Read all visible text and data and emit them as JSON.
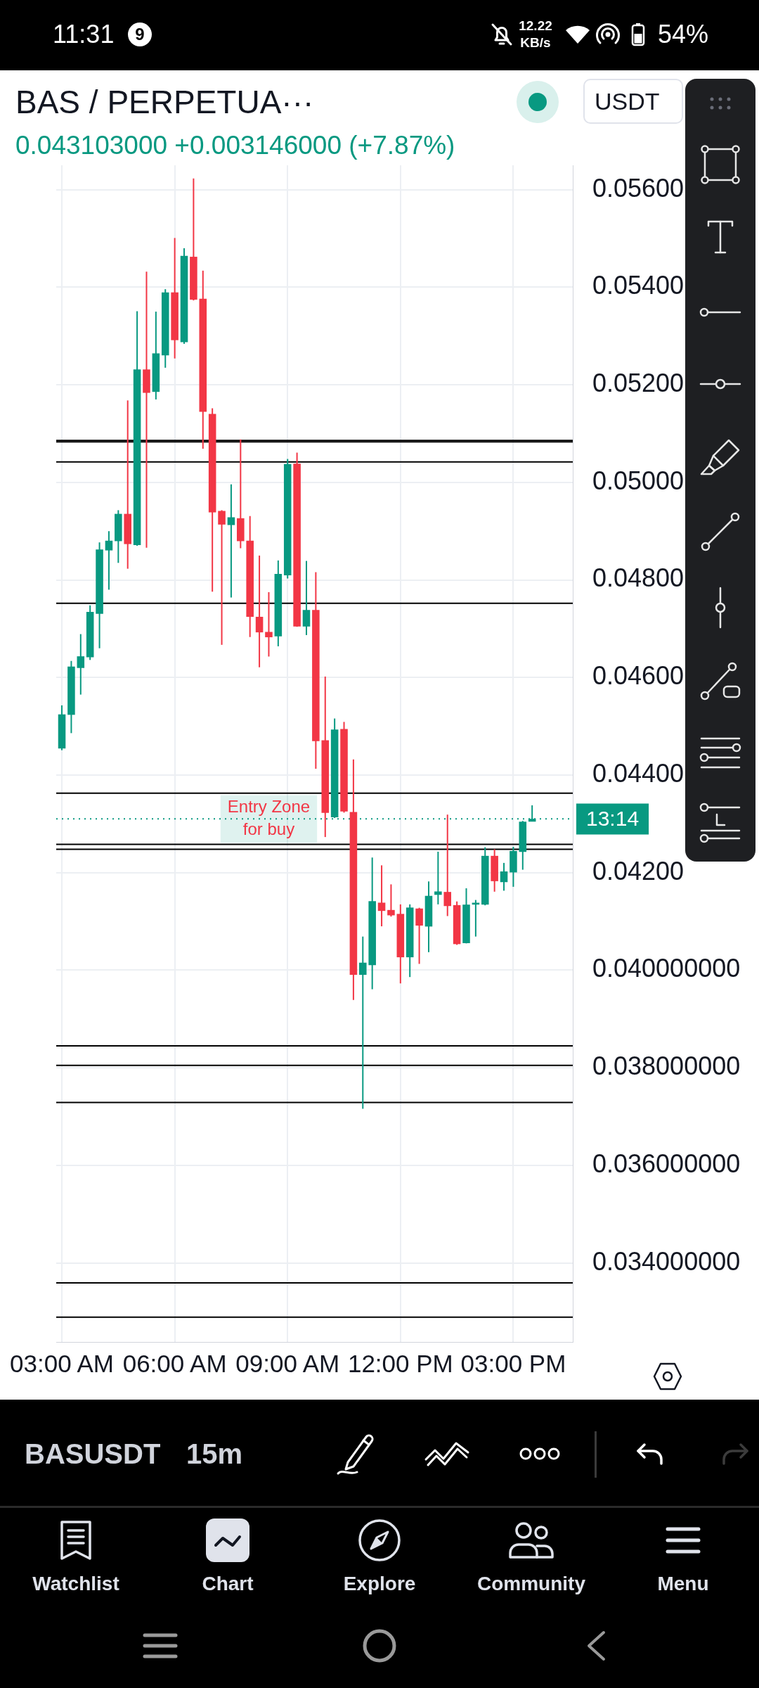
{
  "chart_data": {
    "type": "candlestick",
    "title": "BAS / PERPETUA···",
    "subtitle": "0.043103000 +0.003146000 (+7.87%)",
    "x": [
      3,
      3.25,
      3.5,
      3.75,
      4,
      4.25,
      4.5,
      4.75,
      5,
      5.25,
      5.5,
      5.75,
      6,
      6.25,
      6.5,
      6.75,
      7,
      7.25,
      7.5,
      7.75,
      8,
      8.25,
      8.5,
      8.75,
      9,
      9.25,
      9.5,
      9.75,
      10,
      10.25,
      10.5,
      10.75,
      11,
      11.25,
      11.5,
      11.75,
      12,
      12.25,
      12.5,
      12.75,
      13,
      13.25,
      13.5,
      13.75,
      14,
      14.25,
      14.5,
      14.75,
      15,
      15.25,
      15.5
    ],
    "ohlc": [
      [
        0.04455,
        0.04543,
        0.04451,
        0.04524
      ],
      [
        0.04524,
        0.04634,
        0.04486,
        0.04622
      ],
      [
        0.0462,
        0.04689,
        0.04565,
        0.04643
      ],
      [
        0.04642,
        0.04748,
        0.04636,
        0.04734
      ],
      [
        0.04731,
        0.04877,
        0.0466,
        0.04862
      ],
      [
        0.04861,
        0.049,
        0.0478,
        0.0488
      ],
      [
        0.0488,
        0.04943,
        0.04835,
        0.04935
      ],
      [
        0.04935,
        0.05168,
        0.04823,
        0.04874
      ],
      [
        0.04872,
        0.05351,
        0.0487,
        0.05231
      ],
      [
        0.05231,
        0.05432,
        0.04866,
        0.05184
      ],
      [
        0.05186,
        0.0535,
        0.0517,
        0.05264
      ],
      [
        0.05261,
        0.05396,
        0.05235,
        0.05389
      ],
      [
        0.05389,
        0.05501,
        0.05254,
        0.05292
      ],
      [
        0.05288,
        0.0548,
        0.05284,
        0.05464
      ],
      [
        0.05462,
        0.05623,
        0.05373,
        0.05375
      ],
      [
        0.05376,
        0.05434,
        0.05069,
        0.05145
      ],
      [
        0.0514,
        0.05152,
        0.04776,
        0.04939
      ],
      [
        0.04941,
        0.04943,
        0.04667,
        0.04914
      ],
      [
        0.04913,
        0.04996,
        0.04764,
        0.04928
      ],
      [
        0.04926,
        0.05088,
        0.04865,
        0.0488
      ],
      [
        0.0488,
        0.04931,
        0.04683,
        0.04725
      ],
      [
        0.04724,
        0.0485,
        0.04621,
        0.04693
      ],
      [
        0.04693,
        0.04775,
        0.04643,
        0.04683
      ],
      [
        0.04685,
        0.0484,
        0.04664,
        0.04812
      ],
      [
        0.0481,
        0.05048,
        0.04803,
        0.05037
      ],
      [
        0.05038,
        0.05061,
        0.04704,
        0.04705
      ],
      [
        0.04705,
        0.04839,
        0.04687,
        0.04738
      ],
      [
        0.04738,
        0.04816,
        0.04413,
        0.0447
      ],
      [
        0.04471,
        0.04602,
        0.04273,
        0.04323
      ],
      [
        0.04314,
        0.04516,
        0.04312,
        0.04493
      ],
      [
        0.04494,
        0.04509,
        0.04323,
        0.04326
      ],
      [
        0.04324,
        0.04432,
        0.03939,
        0.03991
      ],
      [
        0.03991,
        0.04069,
        0.03716,
        0.04015
      ],
      [
        0.04011,
        0.04231,
        0.03961,
        0.04141
      ],
      [
        0.04138,
        0.04215,
        0.0409,
        0.04122
      ],
      [
        0.04123,
        0.04176,
        0.0411,
        0.04113
      ],
      [
        0.04115,
        0.04135,
        0.03973,
        0.04027
      ],
      [
        0.04027,
        0.04135,
        0.03986,
        0.04128
      ],
      [
        0.04126,
        0.04128,
        0.04013,
        0.04092
      ],
      [
        0.0409,
        0.04182,
        0.04037,
        0.04152
      ],
      [
        0.04155,
        0.04243,
        0.04135,
        0.04161
      ],
      [
        0.0416,
        0.04319,
        0.04111,
        0.04132
      ],
      [
        0.04133,
        0.04141,
        0.04052,
        0.04054
      ],
      [
        0.04056,
        0.04168,
        0.04055,
        0.04134
      ],
      [
        0.04135,
        0.04144,
        0.04069,
        0.04137
      ],
      [
        0.04135,
        0.04252,
        0.04133,
        0.04234
      ],
      [
        0.04234,
        0.04248,
        0.04161,
        0.04183
      ],
      [
        0.04181,
        0.0422,
        0.04163,
        0.04202
      ],
      [
        0.04201,
        0.04253,
        0.04171,
        0.04244
      ],
      [
        0.04243,
        0.04306,
        0.04206,
        0.04304
      ],
      [
        0.04305,
        0.04338,
        0.04305,
        0.0431
      ]
    ],
    "colors": [
      "#089981",
      "#089981",
      "#089981",
      "#089981",
      "#089981",
      "#089981",
      "#089981",
      "#f23645",
      "#089981",
      "#f23645",
      "#089981",
      "#089981",
      "#f23645",
      "#089981",
      "#f23645",
      "#f23645",
      "#f23645",
      "#f23645",
      "#089981",
      "#f23645",
      "#f23645",
      "#f23645",
      "#f23645",
      "#089981",
      "#089981",
      "#f23645",
      "#089981",
      "#f23645",
      "#f23645",
      "#089981",
      "#f23645",
      "#f23645",
      "#089981",
      "#089981",
      "#f23645",
      "#f23645",
      "#f23645",
      "#089981",
      "#f23645",
      "#089981",
      "#089981",
      "#f23645",
      "#f23645",
      "#089981",
      "#089981",
      "#089981",
      "#f23645",
      "#089981",
      "#089981",
      "#089981",
      "#089981"
    ],
    "xlim": [
      2.85,
      16.58
    ],
    "xticks": [
      {
        "value": 3,
        "label": "03:00 AM"
      },
      {
        "value": 6,
        "label": "06:00 AM"
      },
      {
        "value": 9,
        "label": "09:00 AM"
      },
      {
        "value": 12,
        "label": "12:00 PM"
      },
      {
        "value": 15,
        "label": "03:00 PM"
      }
    ],
    "ylim": [
      0.03238,
      0.0565
    ],
    "yticks": [
      {
        "value": 0.034,
        "label": "0.034000000"
      },
      {
        "value": 0.036,
        "label": "0.036000000"
      },
      {
        "value": 0.038,
        "label": "0.038000000"
      },
      {
        "value": 0.04,
        "label": "0.040000000"
      },
      {
        "value": 0.042,
        "label": "0.04200"
      },
      {
        "value": 0.044,
        "label": "0.04400"
      },
      {
        "value": 0.046,
        "label": "0.04600"
      },
      {
        "value": 0.048,
        "label": "0.04800"
      },
      {
        "value": 0.05,
        "label": "0.05000"
      },
      {
        "value": 0.052,
        "label": "0.05200"
      },
      {
        "value": 0.054,
        "label": "0.05400"
      },
      {
        "value": 0.056,
        "label": "0.05600"
      }
    ],
    "grid": true,
    "ref_lines": [
      {
        "axis": "y",
        "value": 0.05086,
        "color": "#000000"
      },
      {
        "axis": "y",
        "value": 0.05083,
        "color": "#000000"
      },
      {
        "axis": "y",
        "value": 0.05042,
        "color": "#000000"
      },
      {
        "axis": "y",
        "value": 0.04752,
        "color": "#000000"
      },
      {
        "axis": "y",
        "value": 0.04363,
        "color": "#000000"
      },
      {
        "axis": "y",
        "value": 0.043103,
        "color": "#089981",
        "line_style": "dotted"
      },
      {
        "axis": "y",
        "value": 0.04258,
        "color": "#000000"
      },
      {
        "axis": "y",
        "value": 0.04248,
        "color": "#000000"
      },
      {
        "axis": "y",
        "value": 0.03845,
        "color": "#000000"
      },
      {
        "axis": "y",
        "value": 0.03805,
        "color": "#000000"
      },
      {
        "axis": "y",
        "value": 0.03729,
        "color": "#000000"
      },
      {
        "axis": "y",
        "value": 0.03359,
        "color": "#000000"
      },
      {
        "axis": "y",
        "value": 0.03289,
        "color": "#000000"
      }
    ],
    "annotations": [
      "11:31",
      "9",
      "12.22",
      "KB/s",
      "54%",
      "USDT",
      "BASUSDT",
      "15m",
      "Watchlist",
      "Chart",
      "Explore",
      "Community",
      "Menu",
      "13:14",
      {
        "text": "Entry Zone for buy",
        "x": 8.5,
        "y": 0.0431
      }
    ]
  }
}
